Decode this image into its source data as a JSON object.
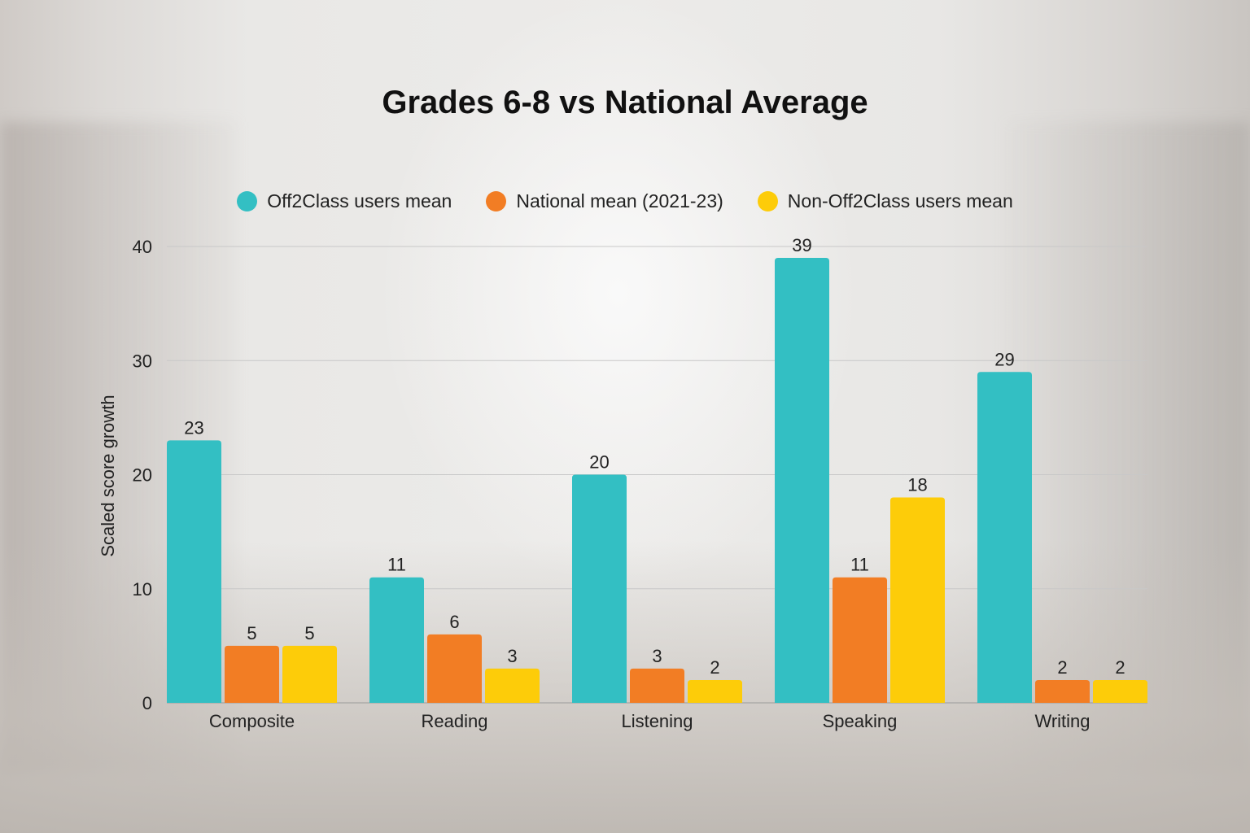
{
  "chart_data": {
    "type": "bar",
    "title": "Grades 6-8 vs National Average",
    "xlabel": "",
    "ylabel": "Scaled score growth",
    "ylim": [
      0,
      40
    ],
    "yticks": [
      0,
      10,
      20,
      30,
      40
    ],
    "grid": true,
    "legend_position": "top",
    "categories": [
      "Composite",
      "Reading",
      "Listening",
      "Speaking",
      "Writing"
    ],
    "series": [
      {
        "name": "Off2Class users mean",
        "color": "#33bfc3",
        "values": [
          23,
          11,
          20,
          39,
          29
        ]
      },
      {
        "name": "National mean (2021-23)",
        "color": "#f27d24",
        "values": [
          5,
          6,
          3,
          11,
          2
        ]
      },
      {
        "name": "Non-Off2Class users mean",
        "color": "#fdcc09",
        "values": [
          5,
          3,
          2,
          18,
          2
        ]
      }
    ]
  }
}
